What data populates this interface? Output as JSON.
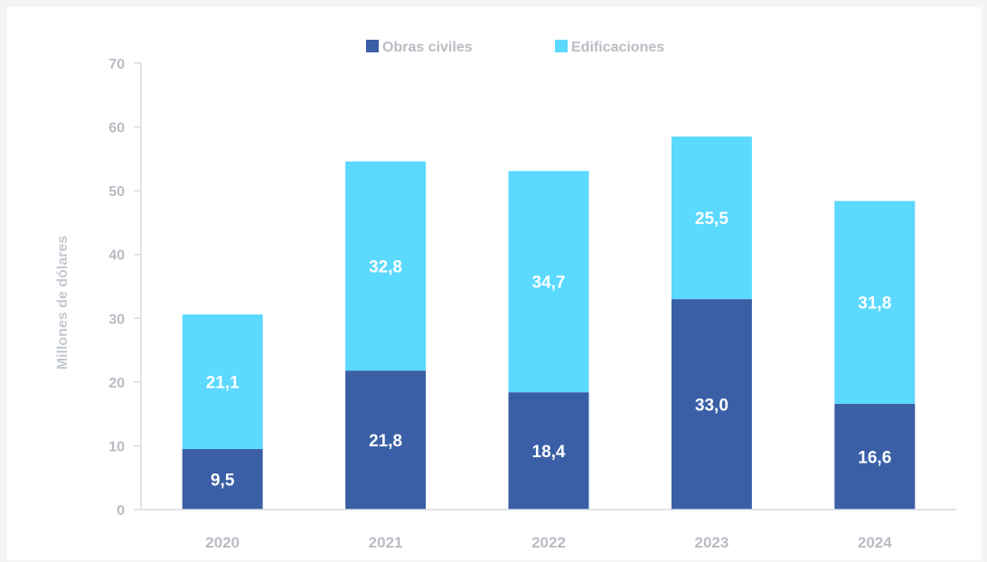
{
  "chart_data": {
    "type": "bar",
    "stacked": true,
    "categories": [
      "2020",
      "2021",
      "2022",
      "2023",
      "2024"
    ],
    "series": [
      {
        "name": "Obras civiles",
        "color": "#3a5fa6",
        "values": [
          9.5,
          21.8,
          18.4,
          33.0,
          16.6
        ],
        "labels": [
          "9,5",
          "21,8",
          "18,4",
          "33,0",
          "16,6"
        ]
      },
      {
        "name": "Edificaciones",
        "color": "#5bd9ff",
        "values": [
          21.1,
          32.8,
          34.7,
          25.5,
          31.8
        ],
        "labels": [
          "21,1",
          "32,8",
          "34,7",
          "25,5",
          "31,8"
        ]
      }
    ],
    "title": "",
    "xlabel": "",
    "ylabel": "Millones de dólares",
    "ylim": [
      0,
      70
    ],
    "yticks": [
      0,
      10,
      20,
      30,
      40,
      50,
      60,
      70
    ],
    "grid": false,
    "legend": "top-center"
  }
}
